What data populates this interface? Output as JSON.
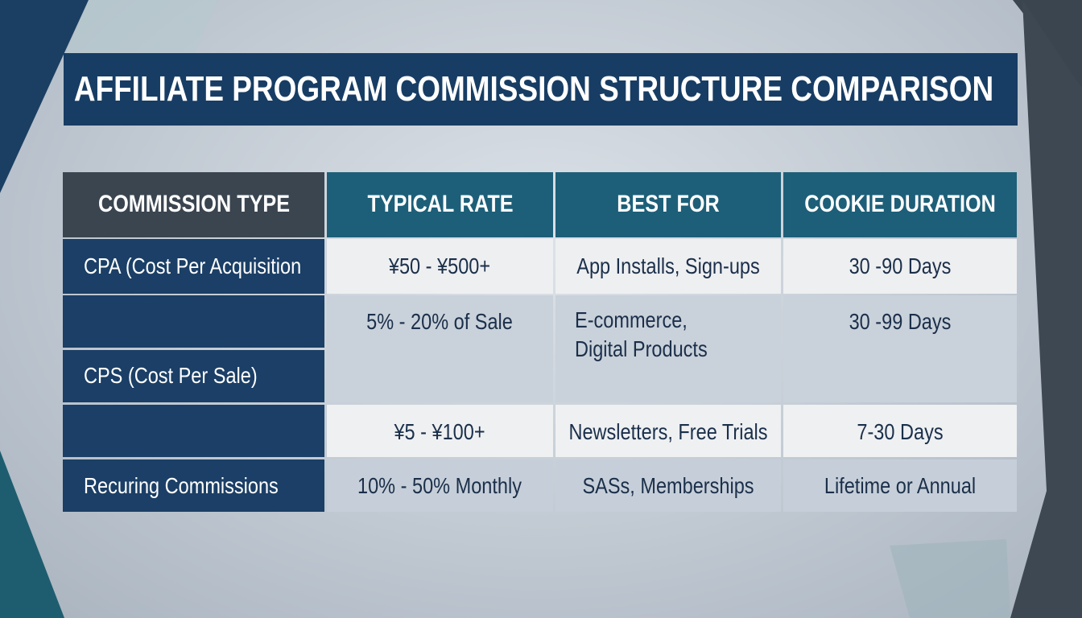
{
  "title": "AFFILIATE PROGRAM COMMISSION STRUCTURE COMPARISON",
  "table": {
    "headers": [
      "COMMISSION TYPE",
      "TYPICAL RATE",
      "BEST FOR",
      "COOKIE DURATION"
    ],
    "rows": [
      {
        "commission_type": "CPA (Cost Per Acquisition",
        "typical_rate": "¥50 - ¥500+",
        "best_for": [
          "App Installs, Sign-ups"
        ],
        "cookie_duration": "30 -90 Days"
      },
      {
        "commission_type": "CPS (Cost Per Sale)",
        "typical_rate": "5% - 20% of Sale",
        "best_for": [
          "E-commerce,",
          "Digital Products"
        ],
        "cookie_duration": "30 -99 Days"
      },
      {
        "typical_rate": "¥5 - ¥100+",
        "best_for": [
          "Newsletters, Free Trials"
        ],
        "cookie_duration": "7-30 Days"
      },
      {
        "commission_type": "Recuring Commissions",
        "typical_rate": "10% - 50% Monthly",
        "best_for": [
          "SASs, Memberships"
        ],
        "cookie_duration": "Lifetime or Annual"
      }
    ]
  }
}
